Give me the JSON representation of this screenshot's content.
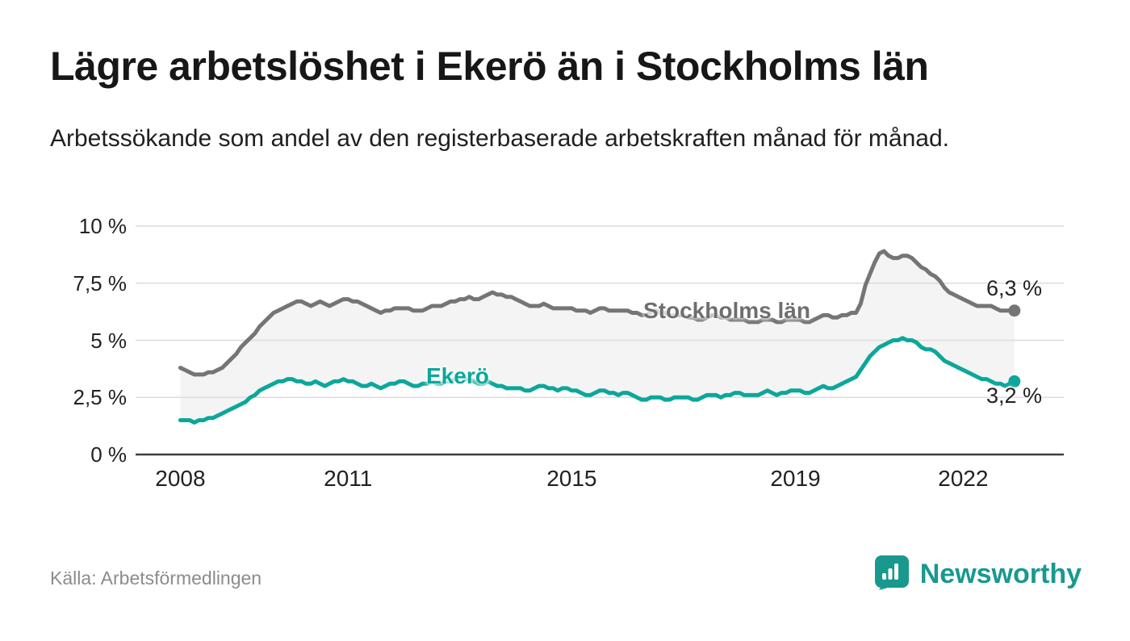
{
  "header": {
    "title": "Lägre arbetslöshet i Ekerö än i Stockholms län",
    "subtitle": "Arbetssökande som andel av den registerbaserade arbetskraften månad för månad."
  },
  "footer": {
    "source": "Källa: Arbetsförmedlingen",
    "brand": "Newsworthy"
  },
  "chart_data": {
    "type": "line",
    "title": "Lägre arbetslöshet i Ekerö än i Stockholms län",
    "subtitle": "Arbetssökande som andel av den registerbaserade arbetskraften månad för månad.",
    "unit": "%",
    "x_start_year": 2008,
    "x_step_months": 1,
    "xlim": [
      2007.2,
      2023.8
    ],
    "ylim": [
      0,
      10
    ],
    "grid": true,
    "band_fill": "#f4f4f4",
    "y_tick_labels": [
      "10 %",
      "7,5 %",
      "5 %",
      "2,5 %",
      "0 %"
    ],
    "y_tick_values": [
      10,
      7.5,
      5,
      2.5,
      0
    ],
    "y_grid": [
      2.5,
      5,
      7.5,
      10
    ],
    "x_ticks": [
      {
        "label": "2008",
        "year": 2008
      },
      {
        "label": "2011",
        "year": 2011
      },
      {
        "label": "2015",
        "year": 2015
      },
      {
        "label": "2019",
        "year": 2019
      },
      {
        "label": "2022",
        "year": 2022
      }
    ],
    "series": [
      {
        "name": "Stockholms län",
        "color": "#757575",
        "end_label": "6,3 %",
        "end_value": 6.3,
        "values": [
          3.8,
          3.7,
          3.6,
          3.5,
          3.5,
          3.5,
          3.6,
          3.6,
          3.7,
          3.8,
          4.0,
          4.2,
          4.4,
          4.7,
          4.9,
          5.1,
          5.3,
          5.6,
          5.8,
          6.0,
          6.2,
          6.3,
          6.4,
          6.5,
          6.6,
          6.7,
          6.7,
          6.6,
          6.5,
          6.6,
          6.7,
          6.6,
          6.5,
          6.6,
          6.7,
          6.8,
          6.8,
          6.7,
          6.7,
          6.6,
          6.5,
          6.4,
          6.3,
          6.2,
          6.3,
          6.3,
          6.4,
          6.4,
          6.4,
          6.4,
          6.3,
          6.3,
          6.3,
          6.4,
          6.5,
          6.5,
          6.5,
          6.6,
          6.7,
          6.7,
          6.8,
          6.8,
          6.9,
          6.8,
          6.8,
          6.9,
          7.0,
          7.1,
          7.0,
          7.0,
          6.9,
          6.9,
          6.8,
          6.7,
          6.6,
          6.5,
          6.5,
          6.5,
          6.6,
          6.5,
          6.4,
          6.4,
          6.4,
          6.4,
          6.4,
          6.3,
          6.3,
          6.3,
          6.2,
          6.3,
          6.4,
          6.4,
          6.3,
          6.3,
          6.3,
          6.3,
          6.3,
          6.2,
          6.2,
          6.1,
          6.1,
          6.2,
          6.3,
          6.2,
          6.2,
          6.1,
          6.1,
          6.1,
          6.1,
          6.0,
          6.0,
          5.9,
          5.9,
          6.0,
          6.1,
          6.1,
          6.0,
          6.0,
          5.9,
          5.9,
          5.9,
          5.9,
          5.8,
          5.8,
          5.8,
          5.9,
          5.9,
          5.9,
          5.8,
          5.8,
          5.9,
          5.9,
          5.9,
          5.9,
          5.8,
          5.8,
          5.9,
          6.0,
          6.1,
          6.1,
          6.0,
          6.0,
          6.1,
          6.1,
          6.2,
          6.2,
          6.6,
          7.4,
          7.9,
          8.4,
          8.8,
          8.9,
          8.7,
          8.6,
          8.6,
          8.7,
          8.7,
          8.6,
          8.4,
          8.2,
          8.1,
          7.9,
          7.8,
          7.6,
          7.3,
          7.1,
          7.0,
          6.9,
          6.8,
          6.7,
          6.6,
          6.5,
          6.5,
          6.5,
          6.5,
          6.4,
          6.3,
          6.3,
          6.3,
          6.3
        ]
      },
      {
        "name": "Ekerö",
        "color": "#0CA79A",
        "end_label": "3,2 %",
        "end_value": 3.2,
        "values": [
          1.5,
          1.5,
          1.5,
          1.4,
          1.5,
          1.5,
          1.6,
          1.6,
          1.7,
          1.8,
          1.9,
          2.0,
          2.1,
          2.2,
          2.3,
          2.5,
          2.6,
          2.8,
          2.9,
          3.0,
          3.1,
          3.2,
          3.2,
          3.3,
          3.3,
          3.2,
          3.2,
          3.1,
          3.1,
          3.2,
          3.1,
          3.0,
          3.1,
          3.2,
          3.2,
          3.3,
          3.2,
          3.2,
          3.1,
          3.0,
          3.0,
          3.1,
          3.0,
          2.9,
          3.0,
          3.1,
          3.1,
          3.2,
          3.2,
          3.1,
          3.0,
          3.0,
          3.1,
          3.1,
          3.2,
          3.1,
          3.1,
          3.2,
          3.2,
          3.3,
          3.4,
          3.3,
          3.3,
          3.2,
          3.1,
          3.1,
          3.2,
          3.1,
          3.0,
          3.0,
          2.9,
          2.9,
          2.9,
          2.9,
          2.8,
          2.8,
          2.9,
          3.0,
          3.0,
          2.9,
          2.9,
          2.8,
          2.9,
          2.9,
          2.8,
          2.8,
          2.7,
          2.6,
          2.6,
          2.7,
          2.8,
          2.8,
          2.7,
          2.7,
          2.6,
          2.7,
          2.7,
          2.6,
          2.5,
          2.4,
          2.4,
          2.5,
          2.5,
          2.5,
          2.4,
          2.4,
          2.5,
          2.5,
          2.5,
          2.5,
          2.4,
          2.4,
          2.5,
          2.6,
          2.6,
          2.6,
          2.5,
          2.6,
          2.6,
          2.7,
          2.7,
          2.6,
          2.6,
          2.6,
          2.6,
          2.7,
          2.8,
          2.7,
          2.6,
          2.7,
          2.7,
          2.8,
          2.8,
          2.8,
          2.7,
          2.7,
          2.8,
          2.9,
          3.0,
          2.9,
          2.9,
          3.0,
          3.1,
          3.2,
          3.3,
          3.4,
          3.7,
          4.0,
          4.3,
          4.5,
          4.7,
          4.8,
          4.9,
          5.0,
          5.0,
          5.1,
          5.0,
          5.0,
          4.9,
          4.7,
          4.6,
          4.6,
          4.5,
          4.3,
          4.1,
          4.0,
          3.9,
          3.8,
          3.7,
          3.6,
          3.5,
          3.4,
          3.3,
          3.3,
          3.2,
          3.1,
          3.1,
          3.0,
          3.1,
          3.2
        ]
      }
    ]
  }
}
